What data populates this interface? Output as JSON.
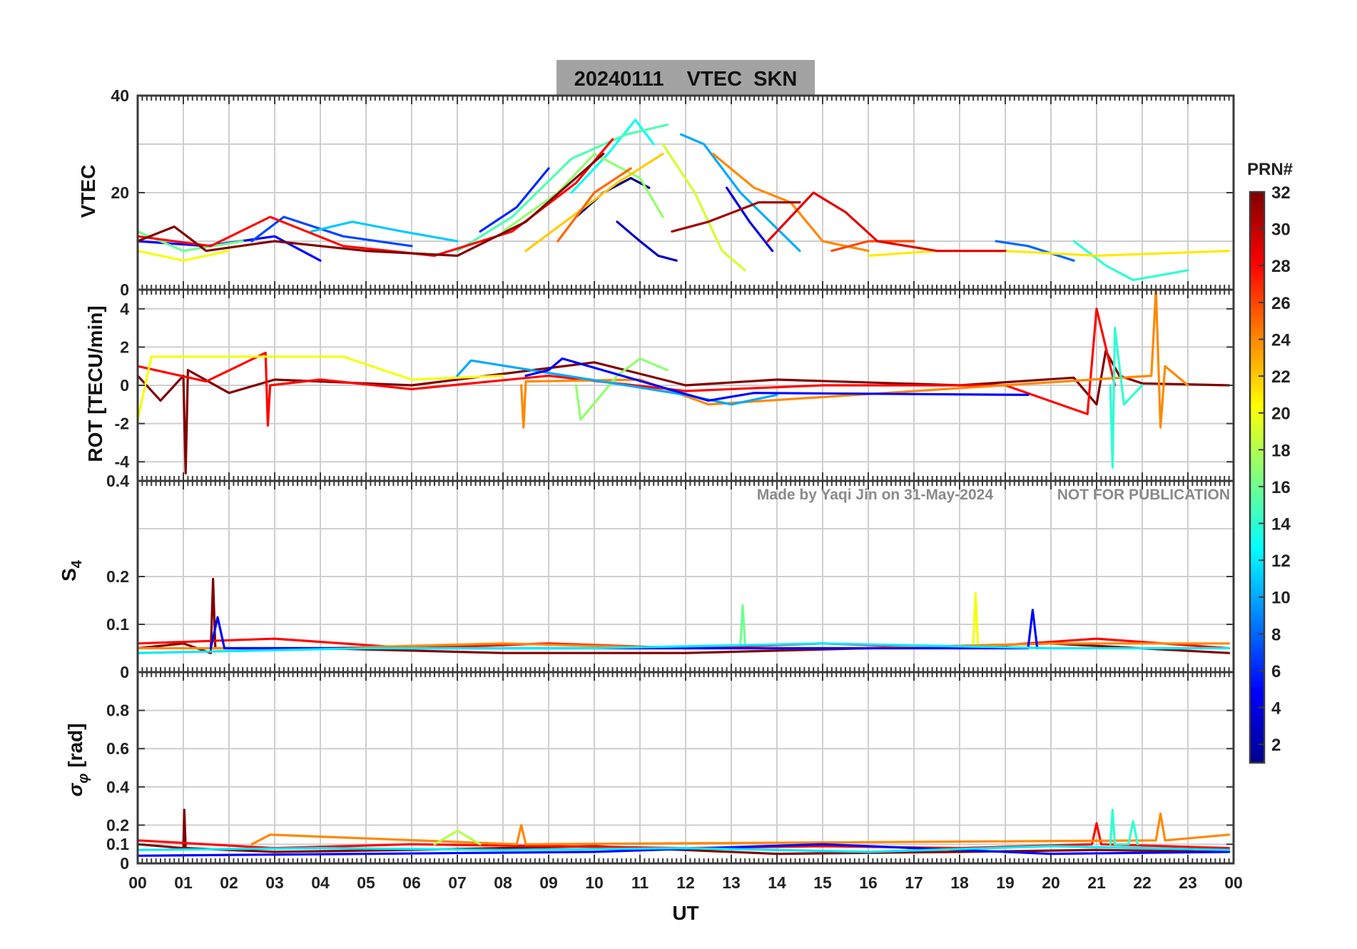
{
  "chart_data": {
    "type": "line",
    "title": "20240111    VTEC  SKN",
    "date": "20240111",
    "station": "SKN",
    "quantity": "VTEC",
    "xlabel": "UT",
    "x_ticks": [
      "00",
      "01",
      "02",
      "03",
      "04",
      "05",
      "06",
      "07",
      "08",
      "09",
      "10",
      "11",
      "12",
      "13",
      "14",
      "15",
      "16",
      "17",
      "18",
      "19",
      "20",
      "21",
      "22",
      "23",
      "00"
    ],
    "xlim": [
      0,
      24
    ],
    "watermark": "Made by Yaqi Jin on 31-May-2024",
    "publication_note": "NOT FOR PUBLICATION",
    "colorbar": {
      "label": "PRN#",
      "range": [
        1,
        32
      ],
      "ticks": [
        "2",
        "4",
        "6",
        "8",
        "10",
        "12",
        "14",
        "16",
        "18",
        "20",
        "22",
        "24",
        "26",
        "28",
        "30",
        "32"
      ],
      "colormap": "jet"
    },
    "panels": [
      {
        "id": "vtec",
        "ylabel": "VTEC",
        "ylim": [
          0,
          40
        ],
        "yticks": [
          "0",
          "20",
          "40"
        ],
        "ytick_values": [
          0,
          20,
          40
        ],
        "grid_values": [
          0,
          10,
          20,
          30,
          40
        ],
        "series": [
          {
            "prn": 1,
            "x": [
              9.6,
              10.2,
              10.8,
              11.2
            ],
            "y": [
              15.0,
              20.0,
              23.0,
              21.0
            ]
          },
          {
            "prn": 3,
            "x": [
              10.5,
              11.0,
              11.4,
              11.8
            ],
            "y": [
              14.0,
              10.0,
              7.0,
              6.0
            ]
          },
          {
            "prn": 4,
            "x": [
              12.9,
              13.4,
              13.9
            ],
            "y": [
              21.0,
              14.0,
              8.0
            ]
          },
          {
            "prn": 5,
            "x": [
              0.0,
              1.5,
              3.0,
              4.0
            ],
            "y": [
              10.0,
              9.0,
              11.0,
              6.0
            ]
          },
          {
            "prn": 6,
            "x": [
              7.5,
              8.3,
              9.0
            ],
            "y": [
              12.0,
              17.0,
              25.0
            ]
          },
          {
            "prn": 7,
            "x": [
              2.5,
              3.2,
              4.5,
              6.0
            ],
            "y": [
              10.0,
              15.0,
              11.0,
              9.0
            ]
          },
          {
            "prn": 8,
            "x": [
              18.8,
              19.5,
              20.5
            ],
            "y": [
              10.0,
              9.0,
              6.0
            ]
          },
          {
            "prn": 10,
            "x": [
              11.9,
              12.4,
              13.2,
              14.5
            ],
            "y": [
              32.0,
              30.0,
              20.0,
              8.0
            ]
          },
          {
            "prn": 11,
            "x": [
              3.8,
              4.7,
              5.8,
              7.0
            ],
            "y": [
              12.0,
              14.0,
              12.0,
              10.0
            ]
          },
          {
            "prn": 13,
            "x": [
              9.5,
              10.3,
              10.9,
              11.3
            ],
            "y": [
              20.0,
              28.0,
              35.0,
              30.0
            ]
          },
          {
            "prn": 14,
            "x": [
              20.5,
              21.2,
              21.8,
              23.0
            ],
            "y": [
              10.0,
              5.0,
              2.0,
              4.0
            ]
          },
          {
            "prn": 15,
            "x": [
              7.0,
              8.2,
              9.5,
              10.7,
              11.6
            ],
            "y": [
              8.0,
              15.0,
              27.0,
              32.0,
              34.0
            ]
          },
          {
            "prn": 16,
            "x": [
              0.0,
              1.0,
              2.3
            ],
            "y": [
              12.0,
              8.0,
              10.0
            ]
          },
          {
            "prn": 17,
            "x": [
              8.0,
              9.2,
              10.0,
              11.0,
              11.5
            ],
            "y": [
              12.0,
              20.0,
              28.0,
              23.0,
              15.0
            ]
          },
          {
            "prn": 19,
            "x": [
              11.5,
              12.2,
              12.8,
              13.3
            ],
            "y": [
              30.0,
              20.0,
              8.0,
              4.0
            ]
          },
          {
            "prn": 20,
            "x": [
              0.0,
              1.0,
              2.0
            ],
            "y": [
              8.0,
              6.0,
              8.0
            ]
          },
          {
            "prn": 21,
            "x": [
              16.0,
              17.5,
              19.0,
              21.0,
              23.9
            ],
            "y": [
              7.0,
              8.0,
              8.0,
              7.0,
              8.0
            ]
          },
          {
            "prn": 22,
            "x": [
              8.5,
              9.5,
              10.5,
              11.5
            ],
            "y": [
              8.0,
              15.0,
              22.0,
              28.0
            ]
          },
          {
            "prn": 24,
            "x": [
              12.6,
              13.5,
              14.3,
              15.0,
              16.0
            ],
            "y": [
              28.0,
              21.0,
              18.0,
              10.0,
              8.0
            ]
          },
          {
            "prn": 25,
            "x": [
              9.2,
              10.0,
              10.8
            ],
            "y": [
              10.0,
              20.0,
              25.0
            ]
          },
          {
            "prn": 26,
            "x": [
              15.2,
              16.0,
              17.0
            ],
            "y": [
              8.0,
              10.0,
              10.0
            ]
          },
          {
            "prn": 28,
            "x": [
              0.0,
              1.6,
              2.9,
              4.5,
              6.5,
              8.2,
              9.6,
              10.4
            ],
            "y": [
              11.0,
              9.0,
              15.0,
              9.0,
              7.0,
              12.0,
              22.0,
              31.0
            ]
          },
          {
            "prn": 29,
            "x": [
              13.8,
              14.8,
              15.5,
              16.2,
              17.5,
              19.0
            ],
            "y": [
              10.0,
              20.0,
              16.0,
              10.0,
              8.0,
              8.0
            ]
          },
          {
            "prn": 31,
            "x": [
              11.7,
              12.5,
              13.6,
              14.5
            ],
            "y": [
              12.0,
              14.0,
              18.0,
              18.0
            ]
          },
          {
            "prn": 32,
            "x": [
              0.0,
              0.8,
              1.5,
              3.0,
              5.0,
              7.0,
              8.5,
              10.2
            ],
            "y": [
              10.0,
              13.0,
              8.0,
              10.0,
              8.0,
              7.0,
              14.0,
              28.0
            ]
          }
        ]
      },
      {
        "id": "rot",
        "ylabel": "ROT [TECU/min]",
        "ylim": [
          -5,
          5
        ],
        "yticks": [
          "-4",
          "-2",
          "0",
          "2",
          "4"
        ],
        "ytick_values": [
          -4,
          -2,
          0,
          2,
          4
        ],
        "grid_values": [
          -4,
          -2,
          0,
          2,
          4
        ],
        "series": [
          {
            "prn": 32,
            "x": [
              0.0,
              0.5,
              1.0,
              1.05,
              1.1,
              2.0,
              3.0,
              6.0,
              10.0,
              12.0,
              14.0,
              18.0,
              20.5,
              21.0,
              21.2,
              21.5,
              22.0,
              23.9
            ],
            "y": [
              0.5,
              -0.8,
              0.5,
              -4.6,
              0.8,
              -0.4,
              0.3,
              0.0,
              1.2,
              0.0,
              0.3,
              0.0,
              0.4,
              -1.0,
              1.8,
              0.5,
              0.1,
              0.0
            ]
          },
          {
            "prn": 28,
            "x": [
              0.0,
              1.5,
              2.8,
              2.85,
              2.9,
              4.0,
              6.0,
              9.0,
              12.0,
              15.0,
              19.0,
              20.8,
              21.0,
              21.4
            ],
            "y": [
              1.0,
              0.2,
              1.7,
              -2.1,
              0.0,
              0.3,
              -0.2,
              0.5,
              -0.3,
              0.0,
              0.0,
              -1.5,
              4.0,
              0.0
            ]
          },
          {
            "prn": 24,
            "x": [
              8.4,
              8.45,
              8.5,
              11.0,
              12.5,
              22.2,
              22.3,
              22.4,
              22.5,
              23.0
            ],
            "y": [
              0.0,
              -2.2,
              0.2,
              0.3,
              -1.0,
              0.5,
              5.0,
              -2.2,
              1.0,
              0.0
            ]
          },
          {
            "prn": 20,
            "x": [
              0.0,
              0.3,
              4.5,
              6.0,
              8.0
            ],
            "y": [
              -1.8,
              1.5,
              1.5,
              0.3,
              0.5
            ]
          },
          {
            "prn": 17,
            "x": [
              9.6,
              9.7,
              10.5,
              11.0,
              11.6
            ],
            "y": [
              0.0,
              -1.8,
              0.5,
              1.4,
              0.8
            ]
          },
          {
            "prn": 14,
            "x": [
              21.3,
              21.35,
              21.4,
              21.6,
              22.0
            ],
            "y": [
              0.0,
              -4.3,
              3.0,
              -1.0,
              0.0
            ]
          },
          {
            "prn": 10,
            "x": [
              7.0,
              7.3,
              12.0,
              13.0,
              14.0
            ],
            "y": [
              0.5,
              1.3,
              -0.5,
              -1.0,
              -0.5
            ]
          },
          {
            "prn": 5,
            "x": [
              8.5,
              9.0,
              9.3,
              12.5,
              13.5,
              19.5
            ],
            "y": [
              0.5,
              0.8,
              1.4,
              -0.8,
              -0.4,
              -0.5
            ]
          }
        ]
      },
      {
        "id": "s4",
        "ylabel": "S4",
        "ylabel_main": "S",
        "ylabel_sub": "4",
        "ylim": [
          0,
          0.4
        ],
        "yticks": [
          "0",
          "0.1",
          "0.2",
          "0.4"
        ],
        "ytick_values": [
          0,
          0.1,
          0.2,
          0.4
        ],
        "grid_values": [
          0,
          0.1,
          0.2,
          0.3,
          0.4
        ],
        "series": [
          {
            "prn": 32,
            "x": [
              0.0,
              1.0,
              1.6,
              1.65,
              1.7,
              4.0,
              8.0,
              12.0,
              16.0,
              20.0,
              23.9
            ],
            "y": [
              0.05,
              0.06,
              0.04,
              0.195,
              0.05,
              0.05,
              0.04,
              0.04,
              0.05,
              0.06,
              0.04
            ]
          },
          {
            "prn": 28,
            "x": [
              0.0,
              3.0,
              6.0,
              9.0,
              12.0,
              15.0,
              18.0,
              21.0,
              23.9
            ],
            "y": [
              0.06,
              0.07,
              0.05,
              0.06,
              0.05,
              0.06,
              0.05,
              0.07,
              0.05
            ]
          },
          {
            "prn": 24,
            "x": [
              0.0,
              4.0,
              8.0,
              12.0,
              16.0,
              20.0,
              23.9
            ],
            "y": [
              0.05,
              0.05,
              0.06,
              0.05,
              0.05,
              0.06,
              0.06
            ]
          },
          {
            "prn": 20,
            "x": [
              18.3,
              18.35,
              18.4
            ],
            "y": [
              0.06,
              0.165,
              0.06
            ]
          },
          {
            "prn": 16,
            "x": [
              13.2,
              13.25,
              13.3
            ],
            "y": [
              0.06,
              0.14,
              0.06
            ]
          },
          {
            "prn": 5,
            "x": [
              1.6,
              1.75,
              1.9,
              19.5,
              19.6,
              19.7
            ],
            "y": [
              0.05,
              0.115,
              0.05,
              0.05,
              0.13,
              0.05
            ]
          },
          {
            "prn": 12,
            "x": [
              0.0,
              5.0,
              10.0,
              15.0,
              20.0,
              23.9
            ],
            "y": [
              0.04,
              0.05,
              0.05,
              0.06,
              0.05,
              0.05
            ]
          }
        ]
      },
      {
        "id": "sigma_phi",
        "ylabel": "σφ [rad]",
        "ylabel_main": "σ",
        "ylabel_sub": "φ",
        "ylabel_unit": "[rad]",
        "ylim": [
          0,
          1
        ],
        "yticks": [
          "0",
          "0.1",
          "0.2",
          "0.4",
          "0.6",
          "0.8"
        ],
        "ytick_values": [
          0,
          0.1,
          0.2,
          0.4,
          0.6,
          0.8
        ],
        "grid_values": [
          0,
          0.1,
          0.2,
          0.4,
          0.6,
          0.8
        ],
        "series": [
          {
            "prn": 32,
            "x": [
              0.0,
              1.0,
              1.02,
              1.05,
              3.0,
              6.0,
              10.0,
              14.0,
              18.0,
              21.0,
              23.9
            ],
            "y": [
              0.1,
              0.08,
              0.28,
              0.08,
              0.06,
              0.07,
              0.09,
              0.05,
              0.06,
              0.07,
              0.06
            ]
          },
          {
            "prn": 28,
            "x": [
              0.0,
              3.0,
              6.0,
              9.0,
              12.0,
              15.0,
              18.0,
              20.9,
              21.0,
              21.1,
              23.9
            ],
            "y": [
              0.12,
              0.08,
              0.1,
              0.09,
              0.08,
              0.09,
              0.08,
              0.1,
              0.21,
              0.1,
              0.08
            ]
          },
          {
            "prn": 24,
            "x": [
              2.5,
              2.9,
              8.3,
              8.4,
              8.5,
              22.3,
              22.4,
              22.5,
              23.9
            ],
            "y": [
              0.1,
              0.15,
              0.1,
              0.2,
              0.1,
              0.12,
              0.26,
              0.12,
              0.15
            ]
          },
          {
            "prn": 14,
            "x": [
              21.3,
              21.35,
              21.4,
              21.7,
              21.8,
              21.9
            ],
            "y": [
              0.1,
              0.28,
              0.1,
              0.1,
              0.22,
              0.1
            ]
          },
          {
            "prn": 18,
            "x": [
              6.5,
              7.0,
              7.5
            ],
            "y": [
              0.1,
              0.17,
              0.1
            ]
          },
          {
            "prn": 5,
            "x": [
              0.0,
              5.0,
              10.0,
              15.0,
              20.0,
              23.9
            ],
            "y": [
              0.04,
              0.05,
              0.06,
              0.1,
              0.05,
              0.06
            ]
          },
          {
            "prn": 12,
            "x": [
              0.0,
              4.0,
              8.0,
              12.0,
              16.0,
              20.0,
              23.9
            ],
            "y": [
              0.07,
              0.08,
              0.07,
              0.08,
              0.06,
              0.09,
              0.07
            ]
          }
        ]
      }
    ]
  }
}
